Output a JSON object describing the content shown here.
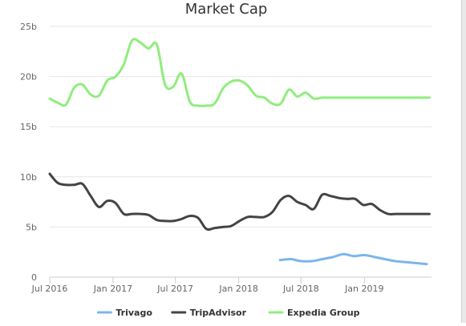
{
  "chart_data": {
    "type": "line",
    "title": "Market Cap",
    "xlabel": "",
    "ylabel": "",
    "ylim": [
      0,
      25
    ],
    "xlim": [
      "2016-07-01",
      "2019-07-15"
    ],
    "y_ticks": [
      {
        "value": 0,
        "label": "0"
      },
      {
        "value": 5,
        "label": "5b"
      },
      {
        "value": 10,
        "label": "10b"
      },
      {
        "value": 15,
        "label": "15b"
      },
      {
        "value": 20,
        "label": "20b"
      },
      {
        "value": 25,
        "label": "25b"
      }
    ],
    "x_ticks": [
      {
        "date": "2016-07-01",
        "label": "Jul 2016"
      },
      {
        "date": "2017-01-01",
        "label": "Jan 2017"
      },
      {
        "date": "2017-07-01",
        "label": "Jul 2017"
      },
      {
        "date": "2018-01-01",
        "label": "Jan 2018"
      },
      {
        "date": "2018-07-01",
        "label": "Jul 2018"
      },
      {
        "date": "2019-01-01",
        "label": "Jan 2019"
      }
    ],
    "grid": {
      "horizontal": true,
      "vertical": false
    },
    "legend_position": "bottom",
    "series": [
      {
        "name": "Trivago",
        "color": "#7cb5ec",
        "x": [
          "2018-05-01",
          "2018-06-01",
          "2018-07-01",
          "2018-08-01",
          "2018-09-01",
          "2018-10-01",
          "2018-11-01",
          "2018-12-01",
          "2019-01-01",
          "2019-02-01",
          "2019-03-01",
          "2019-04-01",
          "2019-05-01",
          "2019-06-01",
          "2019-07-01"
        ],
        "values": [
          1.7,
          1.8,
          1.6,
          1.6,
          1.8,
          2.0,
          2.3,
          2.1,
          2.2,
          2.0,
          1.8,
          1.6,
          1.5,
          1.4,
          1.3
        ]
      },
      {
        "name": "TripAdvisor",
        "color": "#434348",
        "x": [
          "2016-07-01",
          "2016-07-24",
          "2016-08-17",
          "2016-09-10",
          "2016-10-04",
          "2016-10-28",
          "2016-11-21",
          "2016-12-15",
          "2017-01-08",
          "2017-02-01",
          "2017-02-25",
          "2017-03-21",
          "2017-04-14",
          "2017-05-08",
          "2017-06-01",
          "2017-06-25",
          "2017-07-19",
          "2017-08-12",
          "2017-09-05",
          "2017-09-29",
          "2017-10-23",
          "2017-11-16",
          "2017-12-10",
          "2018-01-03",
          "2018-01-27",
          "2018-02-20",
          "2018-03-16",
          "2018-04-09",
          "2018-05-03",
          "2018-05-27",
          "2018-06-20",
          "2018-07-14",
          "2018-08-07",
          "2018-08-31",
          "2018-09-24",
          "2018-10-18",
          "2018-11-11",
          "2018-12-05",
          "2018-12-29",
          "2019-01-22",
          "2019-02-15",
          "2019-03-11",
          "2019-04-04",
          "2019-04-28",
          "2019-05-22",
          "2019-06-15",
          "2019-07-09"
        ],
        "values": [
          10.3,
          9.4,
          9.2,
          9.2,
          9.3,
          8.1,
          7.0,
          7.6,
          7.4,
          6.3,
          6.3,
          6.3,
          6.2,
          5.7,
          5.6,
          5.6,
          5.8,
          6.1,
          5.9,
          4.8,
          4.9,
          5.0,
          5.1,
          5.6,
          6.0,
          6.0,
          6.0,
          6.5,
          7.7,
          8.1,
          7.5,
          7.2,
          6.8,
          8.2,
          8.1,
          7.9,
          7.8,
          7.8,
          7.2,
          7.3,
          6.7,
          6.3,
          6.3,
          6.3,
          6.3,
          6.3,
          6.3
        ]
      },
      {
        "name": "Expedia Group",
        "color": "#90ed7d",
        "x": [
          "2016-07-01",
          "2016-07-24",
          "2016-08-17",
          "2016-09-10",
          "2016-10-04",
          "2016-10-28",
          "2016-11-21",
          "2016-12-15",
          "2017-01-08",
          "2017-02-01",
          "2017-02-25",
          "2017-03-21",
          "2017-04-14",
          "2017-05-08",
          "2017-06-01",
          "2017-06-25",
          "2017-07-19",
          "2017-08-12",
          "2017-09-05",
          "2017-09-29",
          "2017-10-23",
          "2017-11-16",
          "2017-12-10",
          "2018-01-03",
          "2018-01-27",
          "2018-02-20",
          "2018-03-16",
          "2018-04-09",
          "2018-05-03",
          "2018-05-27",
          "2018-06-20",
          "2018-07-14",
          "2018-08-07",
          "2018-08-31",
          "2018-09-24",
          "2018-10-18",
          "2018-11-11",
          "2018-12-05",
          "2018-12-29",
          "2019-01-22",
          "2019-02-15",
          "2019-03-11",
          "2019-04-04",
          "2019-04-28",
          "2019-05-22",
          "2019-06-15",
          "2019-07-09"
        ],
        "values": [
          17.8,
          17.4,
          17.2,
          18.9,
          19.2,
          18.2,
          18.1,
          19.6,
          20.0,
          21.2,
          23.6,
          23.4,
          22.8,
          23.2,
          19.2,
          19.0,
          20.3,
          17.5,
          17.1,
          17.1,
          17.3,
          18.8,
          19.5,
          19.6,
          19.1,
          18.1,
          17.9,
          17.3,
          17.3,
          18.7,
          18.0,
          18.4,
          17.8,
          17.9,
          17.9,
          17.9,
          17.9,
          17.9,
          17.9,
          17.9,
          17.9,
          17.9,
          17.9,
          17.9,
          17.9,
          17.9,
          17.9
        ]
      }
    ]
  }
}
